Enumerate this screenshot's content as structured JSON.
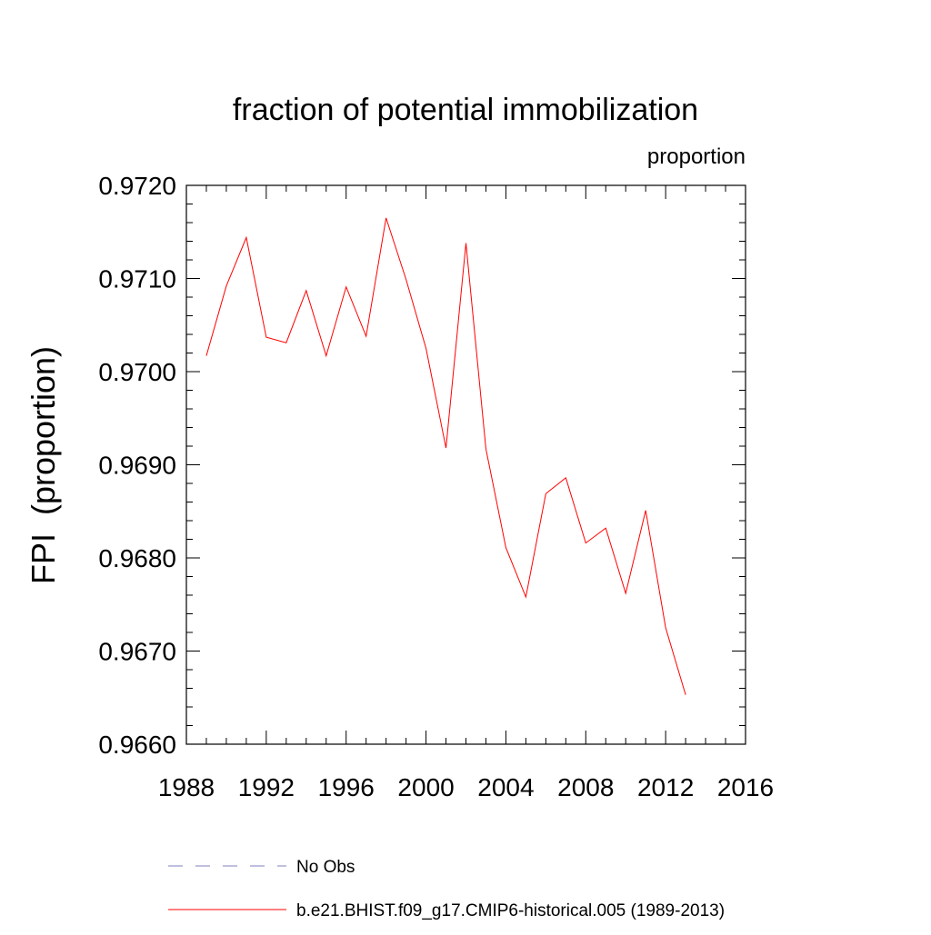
{
  "chart_data": {
    "type": "line",
    "title": "fraction of potential immobilization",
    "units_label": "proportion",
    "xlabel": "",
    "ylabel": "FPI  (proportion)",
    "xlim": [
      1988,
      2016
    ],
    "ylim": [
      0.966,
      0.972
    ],
    "xticks": [
      1988,
      1992,
      1996,
      2000,
      2004,
      2008,
      2012,
      2016
    ],
    "xtick_labels": [
      "1988",
      "1992",
      "1996",
      "2000",
      "2004",
      "2008",
      "2012",
      "2016"
    ],
    "yticks": [
      0.966,
      0.967,
      0.968,
      0.969,
      0.97,
      0.971,
      0.972
    ],
    "ytick_labels": [
      "0.9660",
      "0.9670",
      "0.9680",
      "0.9690",
      "0.9700",
      "0.9710",
      "0.9720"
    ],
    "grid": false,
    "legend_position": "bottom",
    "series": [
      {
        "name": "b.e21.BHIST.f09_g17.CMIP6-historical.005 (1989-2013)",
        "color": "#ff0000",
        "dash": "solid",
        "x": [
          1989,
          1990,
          1991,
          1992,
          1993,
          1994,
          1995,
          1996,
          1997,
          1998,
          1999,
          2000,
          2001,
          2002,
          2003,
          2004,
          2005,
          2006,
          2007,
          2008,
          2009,
          2010,
          2011,
          2012,
          2013
        ],
        "values": [
          0.97017,
          0.97092,
          0.97144,
          0.97037,
          0.97031,
          0.97087,
          0.97017,
          0.97091,
          0.97038,
          0.97165,
          0.97099,
          0.97025,
          0.96918,
          0.97138,
          0.96917,
          0.96811,
          0.96758,
          0.96869,
          0.96886,
          0.96816,
          0.96832,
          0.96762,
          0.96851,
          0.96725,
          0.96653
        ]
      }
    ],
    "legend": [
      {
        "label": "No Obs",
        "color": "#7f7fbf",
        "dash": "dashed"
      },
      {
        "label": "b.e21.BHIST.f09_g17.CMIP6-historical.005 (1989-2013)",
        "color": "#ff0000",
        "dash": "solid"
      }
    ]
  }
}
